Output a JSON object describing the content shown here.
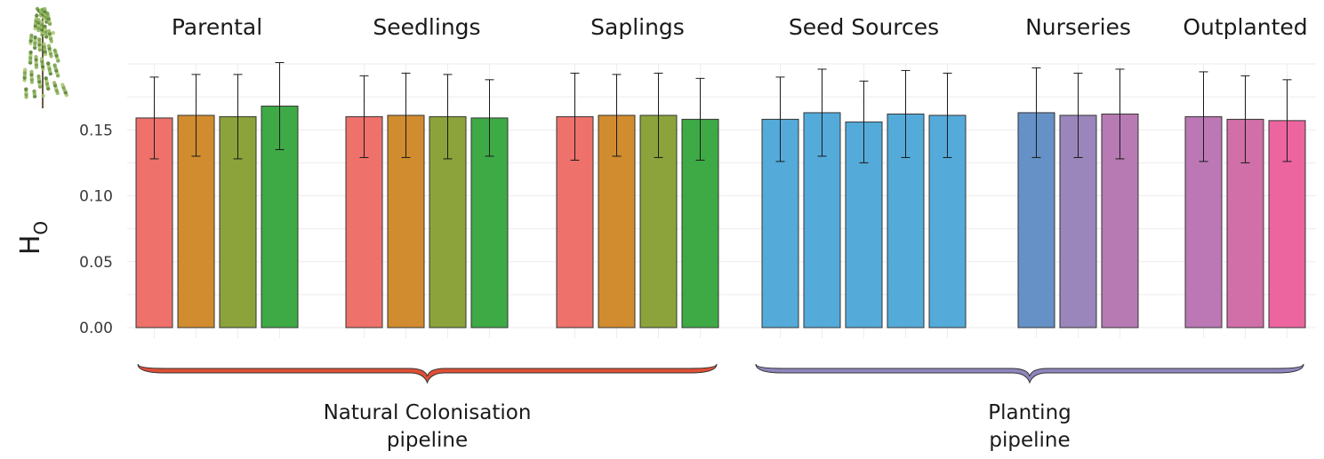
{
  "chart_data": {
    "type": "bar",
    "ylabel": "H",
    "ylabel_subscript": "O",
    "ylim": [
      0,
      0.2
    ],
    "yticks": [
      "0.00",
      "0.05",
      "0.10",
      "0.15"
    ],
    "grid": true,
    "error_bars": true,
    "image_icon": "birch-tree-icon",
    "groups": [
      {
        "name": "Parental",
        "values": [
          0.159,
          0.161,
          0.16,
          0.168
        ],
        "errors": [
          0.031,
          0.031,
          0.032,
          0.033
        ],
        "colors": [
          "#EE726B",
          "#D08C2E",
          "#8CA33B",
          "#3EAA46"
        ]
      },
      {
        "name": "Seedlings",
        "values": [
          0.16,
          0.161,
          0.16,
          0.159
        ],
        "errors": [
          0.031,
          0.032,
          0.032,
          0.029
        ],
        "colors": [
          "#EE726B",
          "#D08C2E",
          "#8CA33B",
          "#3EAA46"
        ]
      },
      {
        "name": "Saplings",
        "values": [
          0.16,
          0.161,
          0.161,
          0.158
        ],
        "errors": [
          0.033,
          0.031,
          0.032,
          0.031
        ],
        "colors": [
          "#EE726B",
          "#D08C2E",
          "#8CA33B",
          "#3EAA46"
        ]
      },
      {
        "name": "Seed Sources",
        "values": [
          0.158,
          0.163,
          0.156,
          0.162,
          0.161
        ],
        "errors": [
          0.032,
          0.033,
          0.031,
          0.033,
          0.032
        ],
        "colors": [
          "#54ABDA",
          "#54ABDA",
          "#54ABDA",
          "#54ABDA",
          "#54ABDA"
        ]
      },
      {
        "name": "Nurseries",
        "values": [
          0.163,
          0.161,
          0.162
        ],
        "errors": [
          0.034,
          0.032,
          0.034
        ],
        "colors": [
          "#6591C7",
          "#9A86BB",
          "#B77AB3"
        ]
      },
      {
        "name": "Outplanted",
        "values": [
          0.16,
          0.158,
          0.157
        ],
        "errors": [
          0.034,
          0.033,
          0.031
        ],
        "colors": [
          "#BB78B4",
          "#D06FA8",
          "#EC659F"
        ]
      }
    ],
    "pipelines": [
      {
        "label": [
          "Natural Colonisation",
          "pipeline"
        ],
        "color": "#E04F36"
      },
      {
        "label": [
          "Planting",
          "pipeline"
        ],
        "color": "#8F86BE"
      }
    ]
  }
}
